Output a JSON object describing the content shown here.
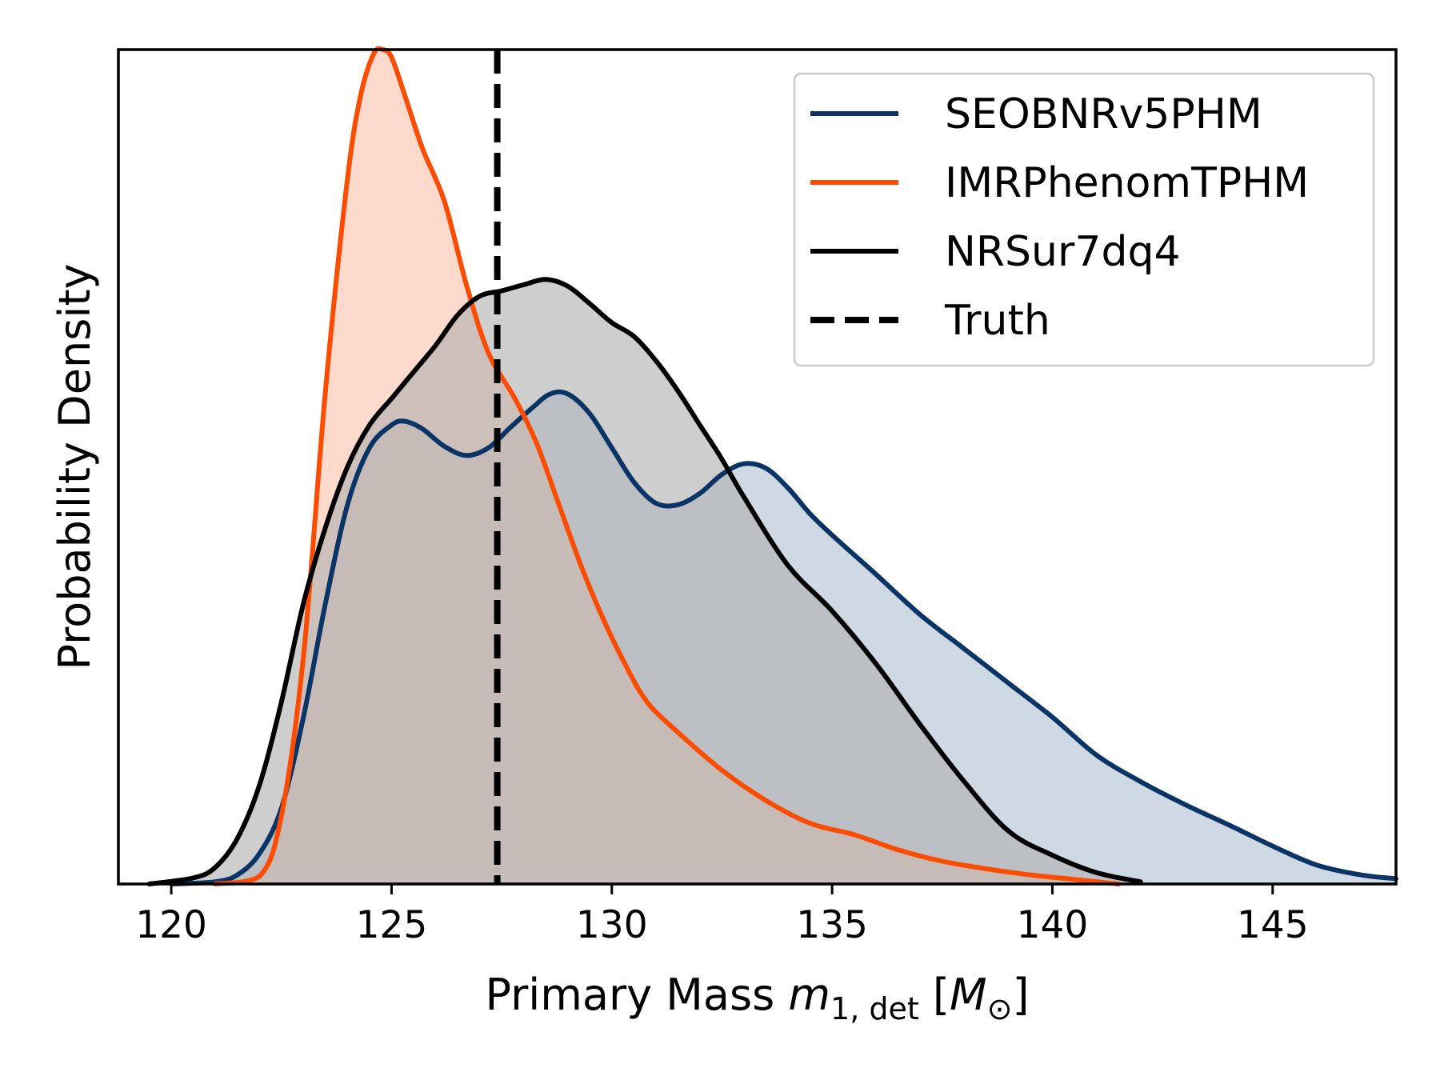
{
  "chart_data": {
    "type": "area",
    "xlabel": {
      "prefix": "Primary Mass ",
      "symbol": "m",
      "subscript": "1, det",
      "unit_open": " [",
      "unit_symbol": "M",
      "unit_sub": "⊙",
      "unit_close": "]"
    },
    "ylabel": "Probability Density",
    "xlim": [
      118.8,
      147.8
    ],
    "ylim": [
      0,
      1.1
    ],
    "xticks": [
      120,
      125,
      130,
      135,
      140,
      145
    ],
    "yticks_visible": false,
    "grid": false,
    "legend_position": "top-right",
    "truth": {
      "name": "Truth",
      "x": 127.4,
      "color": "#000000",
      "style": "dashed"
    },
    "series": [
      {
        "name": "SEOBNRv5PHM",
        "color": "#0b3466",
        "fill": "#b1c2d4",
        "x": [
          120.0,
          121.0,
          121.5,
          122.0,
          122.5,
          123.0,
          123.5,
          124.0,
          124.5,
          125.0,
          125.3,
          125.7,
          126.2,
          126.7,
          127.2,
          127.7,
          128.2,
          128.6,
          129.0,
          129.5,
          130.0,
          130.5,
          131.0,
          131.5,
          132.0,
          132.5,
          133.0,
          133.5,
          134.0,
          134.5,
          135.0,
          136.0,
          137.0,
          138.0,
          139.0,
          140.0,
          141.0,
          142.0,
          143.0,
          144.0,
          145.0,
          146.0,
          147.0,
          147.8
        ],
        "y": [
          0.0,
          0.003,
          0.012,
          0.04,
          0.1,
          0.22,
          0.37,
          0.5,
          0.575,
          0.605,
          0.61,
          0.6,
          0.577,
          0.565,
          0.575,
          0.602,
          0.628,
          0.646,
          0.646,
          0.62,
          0.575,
          0.53,
          0.502,
          0.5,
          0.515,
          0.54,
          0.554,
          0.548,
          0.522,
          0.488,
          0.46,
          0.408,
          0.355,
          0.31,
          0.265,
          0.22,
          0.17,
          0.135,
          0.105,
          0.078,
          0.05,
          0.025,
          0.012,
          0.007
        ]
      },
      {
        "name": "IMRPhenomTPHM",
        "color": "#fc4c02",
        "fill": "#fcc4ad",
        "x": [
          121.0,
          122.0,
          122.5,
          123.0,
          123.5,
          124.0,
          124.3,
          124.6,
          124.8,
          125.0,
          125.3,
          125.7,
          126.2,
          126.7,
          127.2,
          127.8,
          128.3,
          128.8,
          129.3,
          129.8,
          130.3,
          130.8,
          131.5,
          132.5,
          133.5,
          134.5,
          135.5,
          136.5,
          137.5,
          138.5,
          139.5,
          140.5,
          141.5
        ],
        "y": [
          0.0,
          0.01,
          0.09,
          0.3,
          0.65,
          0.93,
          1.04,
          1.095,
          1.1,
          1.09,
          1.04,
          0.97,
          0.9,
          0.79,
          0.7,
          0.64,
          0.58,
          0.5,
          0.42,
          0.35,
          0.29,
          0.24,
          0.2,
          0.15,
          0.11,
          0.08,
          0.065,
          0.045,
          0.03,
          0.02,
          0.012,
          0.006,
          0.0
        ]
      },
      {
        "name": "NRSur7dq4",
        "color": "#000000",
        "fill": "#b0b0b0",
        "x": [
          119.5,
          120.5,
          121.0,
          121.5,
          122.0,
          122.5,
          123.0,
          123.5,
          124.0,
          124.5,
          125.0,
          125.5,
          126.0,
          126.5,
          127.0,
          127.5,
          128.0,
          128.5,
          129.0,
          129.5,
          130.0,
          130.5,
          131.0,
          131.5,
          132.0,
          132.5,
          133.0,
          134.0,
          135.0,
          136.0,
          137.0,
          138.0,
          139.0,
          140.0,
          141.0,
          142.0
        ],
        "y": [
          0.0,
          0.008,
          0.022,
          0.06,
          0.13,
          0.24,
          0.37,
          0.47,
          0.55,
          0.605,
          0.64,
          0.675,
          0.71,
          0.75,
          0.775,
          0.782,
          0.79,
          0.797,
          0.788,
          0.765,
          0.74,
          0.722,
          0.69,
          0.65,
          0.605,
          0.56,
          0.51,
          0.42,
          0.36,
          0.29,
          0.21,
          0.135,
          0.07,
          0.038,
          0.015,
          0.003
        ]
      }
    ]
  }
}
